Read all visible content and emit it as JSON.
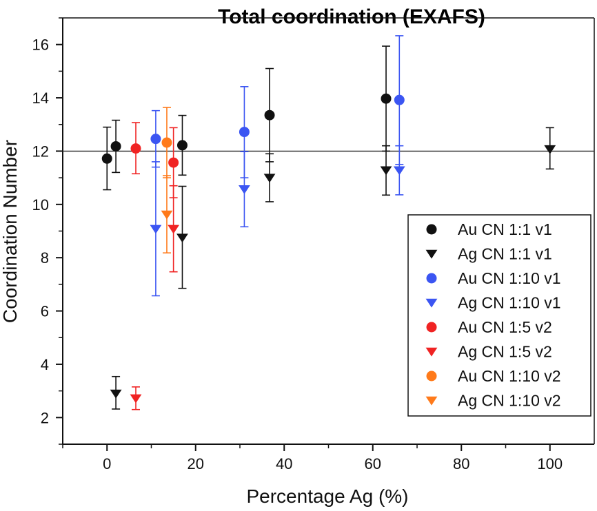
{
  "colors": {
    "black": "#111111",
    "blue": "#3b55f2",
    "red": "#f02323",
    "orange": "#ff7a1a",
    "reference_line": "#333333"
  },
  "chart_data": {
    "type": "scatter",
    "title": "Total coordination (EXAFS)",
    "xlabel": "Percentage Ag (%)",
    "ylabel": "Coordination Number",
    "xlim": [
      -10,
      110
    ],
    "ylim": [
      1,
      17
    ],
    "xticks": [
      0,
      20,
      40,
      60,
      80,
      100
    ],
    "yticks": [
      2,
      4,
      6,
      8,
      10,
      12,
      14,
      16
    ],
    "grid": false,
    "legend_position": "bottom-right",
    "reference_line": {
      "orientation": "horizontal",
      "y": 12
    },
    "series": [
      {
        "name": "Au CN 1:1 v1",
        "marker": "circle",
        "color": "#111111",
        "points": [
          {
            "x": 0,
            "y": 11.72,
            "y_low": 10.55,
            "y_high": 12.9
          },
          {
            "x": 2,
            "y": 12.18,
            "y_low": 11.2,
            "y_high": 13.16
          },
          {
            "x": 17,
            "y": 12.22,
            "y_low": 11.1,
            "y_high": 13.34
          },
          {
            "x": 36.7,
            "y": 13.35,
            "y_low": 11.6,
            "y_high": 15.1
          },
          {
            "x": 63,
            "y": 13.97,
            "y_low": 12.0,
            "y_high": 15.94
          }
        ]
      },
      {
        "name": "Ag CN 1:1 v1",
        "marker": "triangle-down",
        "color": "#111111",
        "points": [
          {
            "x": 2,
            "y": 2.9,
            "y_low": 2.32,
            "y_high": 3.54
          },
          {
            "x": 17,
            "y": 8.75,
            "y_low": 6.85,
            "y_high": 10.68
          },
          {
            "x": 36.7,
            "y": 11.0,
            "y_low": 10.1,
            "y_high": 11.9
          },
          {
            "x": 63,
            "y": 11.28,
            "y_low": 10.35,
            "y_high": 12.2
          },
          {
            "x": 100,
            "y": 12.07,
            "y_low": 11.33,
            "y_high": 12.88
          }
        ]
      },
      {
        "name": "Au CN 1:10 v1",
        "marker": "circle",
        "color": "#3b55f2",
        "points": [
          {
            "x": 11,
            "y": 12.46,
            "y_low": 11.4,
            "y_high": 13.52
          },
          {
            "x": 31,
            "y": 12.72,
            "y_low": 11.0,
            "y_high": 14.42
          },
          {
            "x": 66,
            "y": 13.92,
            "y_low": 11.5,
            "y_high": 16.33
          }
        ]
      },
      {
        "name": "Ag CN 1:10 v1",
        "marker": "triangle-down",
        "color": "#3b55f2",
        "points": [
          {
            "x": 11,
            "y": 9.08,
            "y_low": 6.57,
            "y_high": 11.6
          },
          {
            "x": 31,
            "y": 10.57,
            "y_low": 9.16,
            "y_high": 11.98
          },
          {
            "x": 66,
            "y": 11.28,
            "y_low": 10.36,
            "y_high": 12.2
          }
        ]
      },
      {
        "name": "Au CN 1:5 v2",
        "marker": "circle",
        "color": "#f02323",
        "points": [
          {
            "x": 6.5,
            "y": 12.1,
            "y_low": 11.15,
            "y_high": 13.07
          },
          {
            "x": 15,
            "y": 11.57,
            "y_low": 10.25,
            "y_high": 12.88
          }
        ]
      },
      {
        "name": "Ag CN 1:5 v2",
        "marker": "triangle-down",
        "color": "#f02323",
        "points": [
          {
            "x": 6.5,
            "y": 2.72,
            "y_low": 2.3,
            "y_high": 3.15
          },
          {
            "x": 15,
            "y": 9.08,
            "y_low": 7.47,
            "y_high": 10.7
          }
        ]
      },
      {
        "name": "Au CN 1:10 v2",
        "marker": "circle",
        "color": "#ff7a1a",
        "points": [
          {
            "x": 13.5,
            "y": 12.32,
            "y_low": 11.0,
            "y_high": 13.64
          }
        ]
      },
      {
        "name": "Ag CN 1:10 v2",
        "marker": "triangle-down",
        "color": "#ff7a1a",
        "points": [
          {
            "x": 13.5,
            "y": 9.62,
            "y_low": 8.18,
            "y_high": 11.08
          }
        ]
      }
    ]
  }
}
